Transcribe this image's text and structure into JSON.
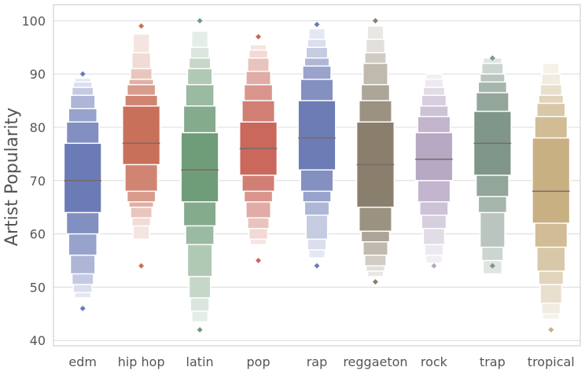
{
  "chart_data": {
    "type": "boxen",
    "title": "",
    "xlabel": "",
    "ylabel": "Artist Popularity",
    "ylim": [
      39,
      103
    ],
    "yticks": [
      40,
      50,
      60,
      70,
      80,
      90,
      100
    ],
    "grid": true,
    "categories": [
      "edm",
      "hip hop",
      "latin",
      "pop",
      "rap",
      "reggaeton",
      "rock",
      "trap",
      "tropical"
    ],
    "colors": [
      "#6b7bb6",
      "#c8705a",
      "#6f9c79",
      "#c9685b",
      "#6d7cb5",
      "#8a7f6c",
      "#b7a8c4",
      "#7f9688",
      "#c9b083"
    ],
    "series": [
      {
        "category": "edm",
        "median": 70,
        "letter_values": [
          [
            64,
            77
          ],
          [
            60,
            81
          ],
          [
            56,
            83.5
          ],
          [
            52.5,
            86
          ],
          [
            50.5,
            87.5
          ],
          [
            49,
            88.5
          ],
          [
            48,
            89.2
          ]
        ],
        "outliers": [
          90,
          46
        ]
      },
      {
        "category": "hip hop",
        "median": 77,
        "letter_values": [
          [
            73,
            84
          ],
          [
            68,
            86
          ],
          [
            66,
            88
          ],
          [
            65,
            89
          ],
          [
            63,
            91
          ],
          [
            61.5,
            94
          ],
          [
            59,
            97.5
          ]
        ],
        "outliers": [
          99,
          54
        ]
      },
      {
        "category": "latin",
        "median": 72,
        "letter_values": [
          [
            66,
            79
          ],
          [
            61.5,
            84
          ],
          [
            58,
            88
          ],
          [
            52,
            91
          ],
          [
            48,
            93
          ],
          [
            45.5,
            95
          ],
          [
            43.5,
            98
          ]
        ],
        "outliers": [
          100,
          42
        ]
      },
      {
        "category": "pop",
        "median": 76,
        "letter_values": [
          [
            71,
            81
          ],
          [
            68,
            85
          ],
          [
            66,
            88
          ],
          [
            63,
            90.5
          ],
          [
            61,
            93
          ],
          [
            59,
            94.5
          ],
          [
            58,
            95.5
          ]
        ],
        "outliers": [
          97,
          55
        ]
      },
      {
        "category": "rap",
        "median": 78,
        "letter_values": [
          [
            72,
            85
          ],
          [
            68,
            89
          ],
          [
            66,
            91.5
          ],
          [
            63.5,
            93
          ],
          [
            59,
            95
          ],
          [
            57,
            96.5
          ],
          [
            55.5,
            98.5
          ]
        ],
        "outliers": [
          99.3,
          54
        ]
      },
      {
        "category": "reggaeton",
        "median": 73,
        "letter_values": [
          [
            65,
            81
          ],
          [
            60.5,
            85
          ],
          [
            58.5,
            88
          ],
          [
            56,
            92
          ],
          [
            54,
            94
          ],
          [
            53,
            96.5
          ],
          [
            52,
            99
          ]
        ],
        "outliers": [
          100,
          51
        ]
      },
      {
        "category": "rock",
        "median": 74,
        "letter_values": [
          [
            70,
            79
          ],
          [
            66,
            82
          ],
          [
            63.5,
            84
          ],
          [
            61,
            86
          ],
          [
            58,
            87.5
          ],
          [
            56,
            89
          ],
          [
            54.5,
            90
          ]
        ],
        "outliers": [
          54
        ]
      },
      {
        "category": "trap",
        "median": 77,
        "letter_values": [
          [
            71,
            83
          ],
          [
            67,
            86.5
          ],
          [
            64,
            88.5
          ],
          [
            57.5,
            90
          ],
          [
            55,
            92
          ],
          [
            52.5,
            93
          ]
        ],
        "outliers": [
          93,
          54
        ]
      },
      {
        "category": "tropical",
        "median": 68,
        "letter_values": [
          [
            62,
            78
          ],
          [
            57.5,
            82
          ],
          [
            53,
            84.5
          ],
          [
            50.5,
            86
          ],
          [
            47,
            88
          ],
          [
            45,
            90
          ],
          [
            44,
            92
          ]
        ],
        "outliers": [
          42
        ]
      }
    ]
  }
}
